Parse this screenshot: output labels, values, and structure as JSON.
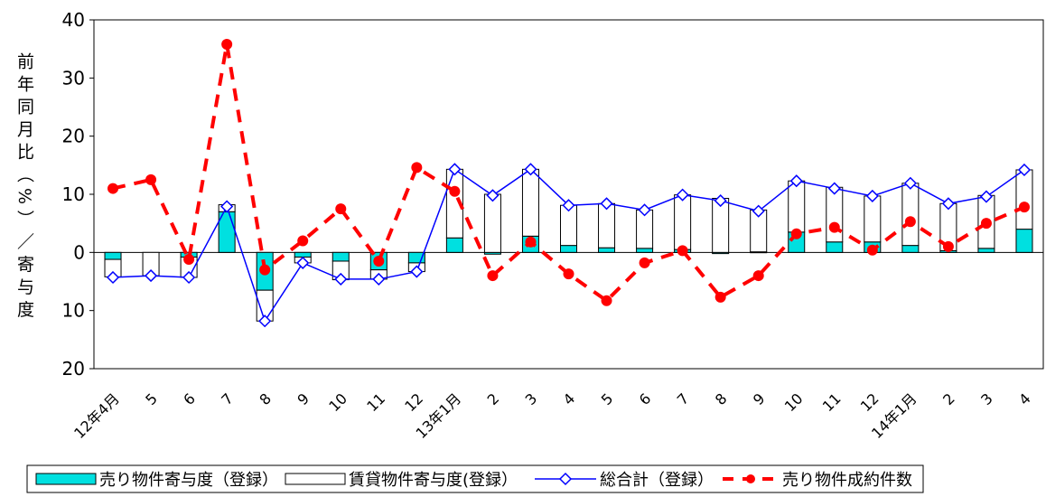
{
  "chart_data": {
    "type": "bar",
    "categories": [
      "12年4月",
      "5",
      "6",
      "7",
      "8",
      "9",
      "10",
      "11",
      "12",
      "13年1月",
      "2",
      "3",
      "4",
      "5",
      "6",
      "7",
      "8",
      "9",
      "10",
      "11",
      "12",
      "14年1月",
      "2",
      "3",
      "4"
    ],
    "yaxis": {
      "ylim": [
        -20,
        40
      ],
      "ticks": [
        40,
        30,
        20,
        10,
        0,
        -10,
        -20
      ],
      "tick_labels": [
        "40",
        "30",
        "20",
        "10",
        "0",
        "10",
        "20"
      ],
      "ylabel": "前年同月比（%）／寄与度"
    },
    "grid": false,
    "legend_position": "bottom",
    "series": [
      {
        "name": "売り物件寄与度（登録）",
        "type": "bar-stacked",
        "color": "#00e0e0",
        "values": [
          -1.2,
          0.0,
          -0.8,
          7.0,
          -6.5,
          -0.8,
          -1.5,
          -3.0,
          -1.8,
          2.5,
          -0.3,
          2.8,
          1.2,
          0.8,
          0.7,
          0.5,
          -0.2,
          0.1,
          3.5,
          1.8,
          1.8,
          1.2,
          0.3,
          0.7,
          4.0
        ]
      },
      {
        "name": "賃貸物件寄与度(登録）",
        "type": "bar-stacked",
        "color": "#ffffff",
        "values": [
          -3.0,
          -4.0,
          -3.5,
          1.2,
          -5.3,
          -1.0,
          -3.2,
          -1.6,
          -1.5,
          11.8,
          10.0,
          11.5,
          6.9,
          7.6,
          6.6,
          9.4,
          9.3,
          7.2,
          8.8,
          9.4,
          7.9,
          10.7,
          8.1,
          9.1,
          10.2
        ]
      },
      {
        "name": "総合計（登録）",
        "type": "line",
        "color": "#0000ff",
        "values": [
          -4.3,
          -4.0,
          -4.3,
          7.9,
          -11.8,
          -1.8,
          -4.6,
          -4.6,
          -3.3,
          14.3,
          9.8,
          14.3,
          8.1,
          8.4,
          7.3,
          9.9,
          8.9,
          7.1,
          12.3,
          11.0,
          9.7,
          11.9,
          8.4,
          9.6,
          14.2
        ]
      },
      {
        "name": "売り物件成約件数",
        "type": "line-dashed",
        "color": "#ff0000",
        "values": [
          11.0,
          12.5,
          -1.2,
          35.8,
          -3.0,
          2.0,
          7.5,
          -1.5,
          14.6,
          10.5,
          -4.0,
          1.8,
          -3.7,
          -8.3,
          -1.8,
          0.3,
          -7.7,
          -4.0,
          3.2,
          4.3,
          0.4,
          5.3,
          1.0,
          5.0,
          7.8
        ]
      }
    ]
  }
}
